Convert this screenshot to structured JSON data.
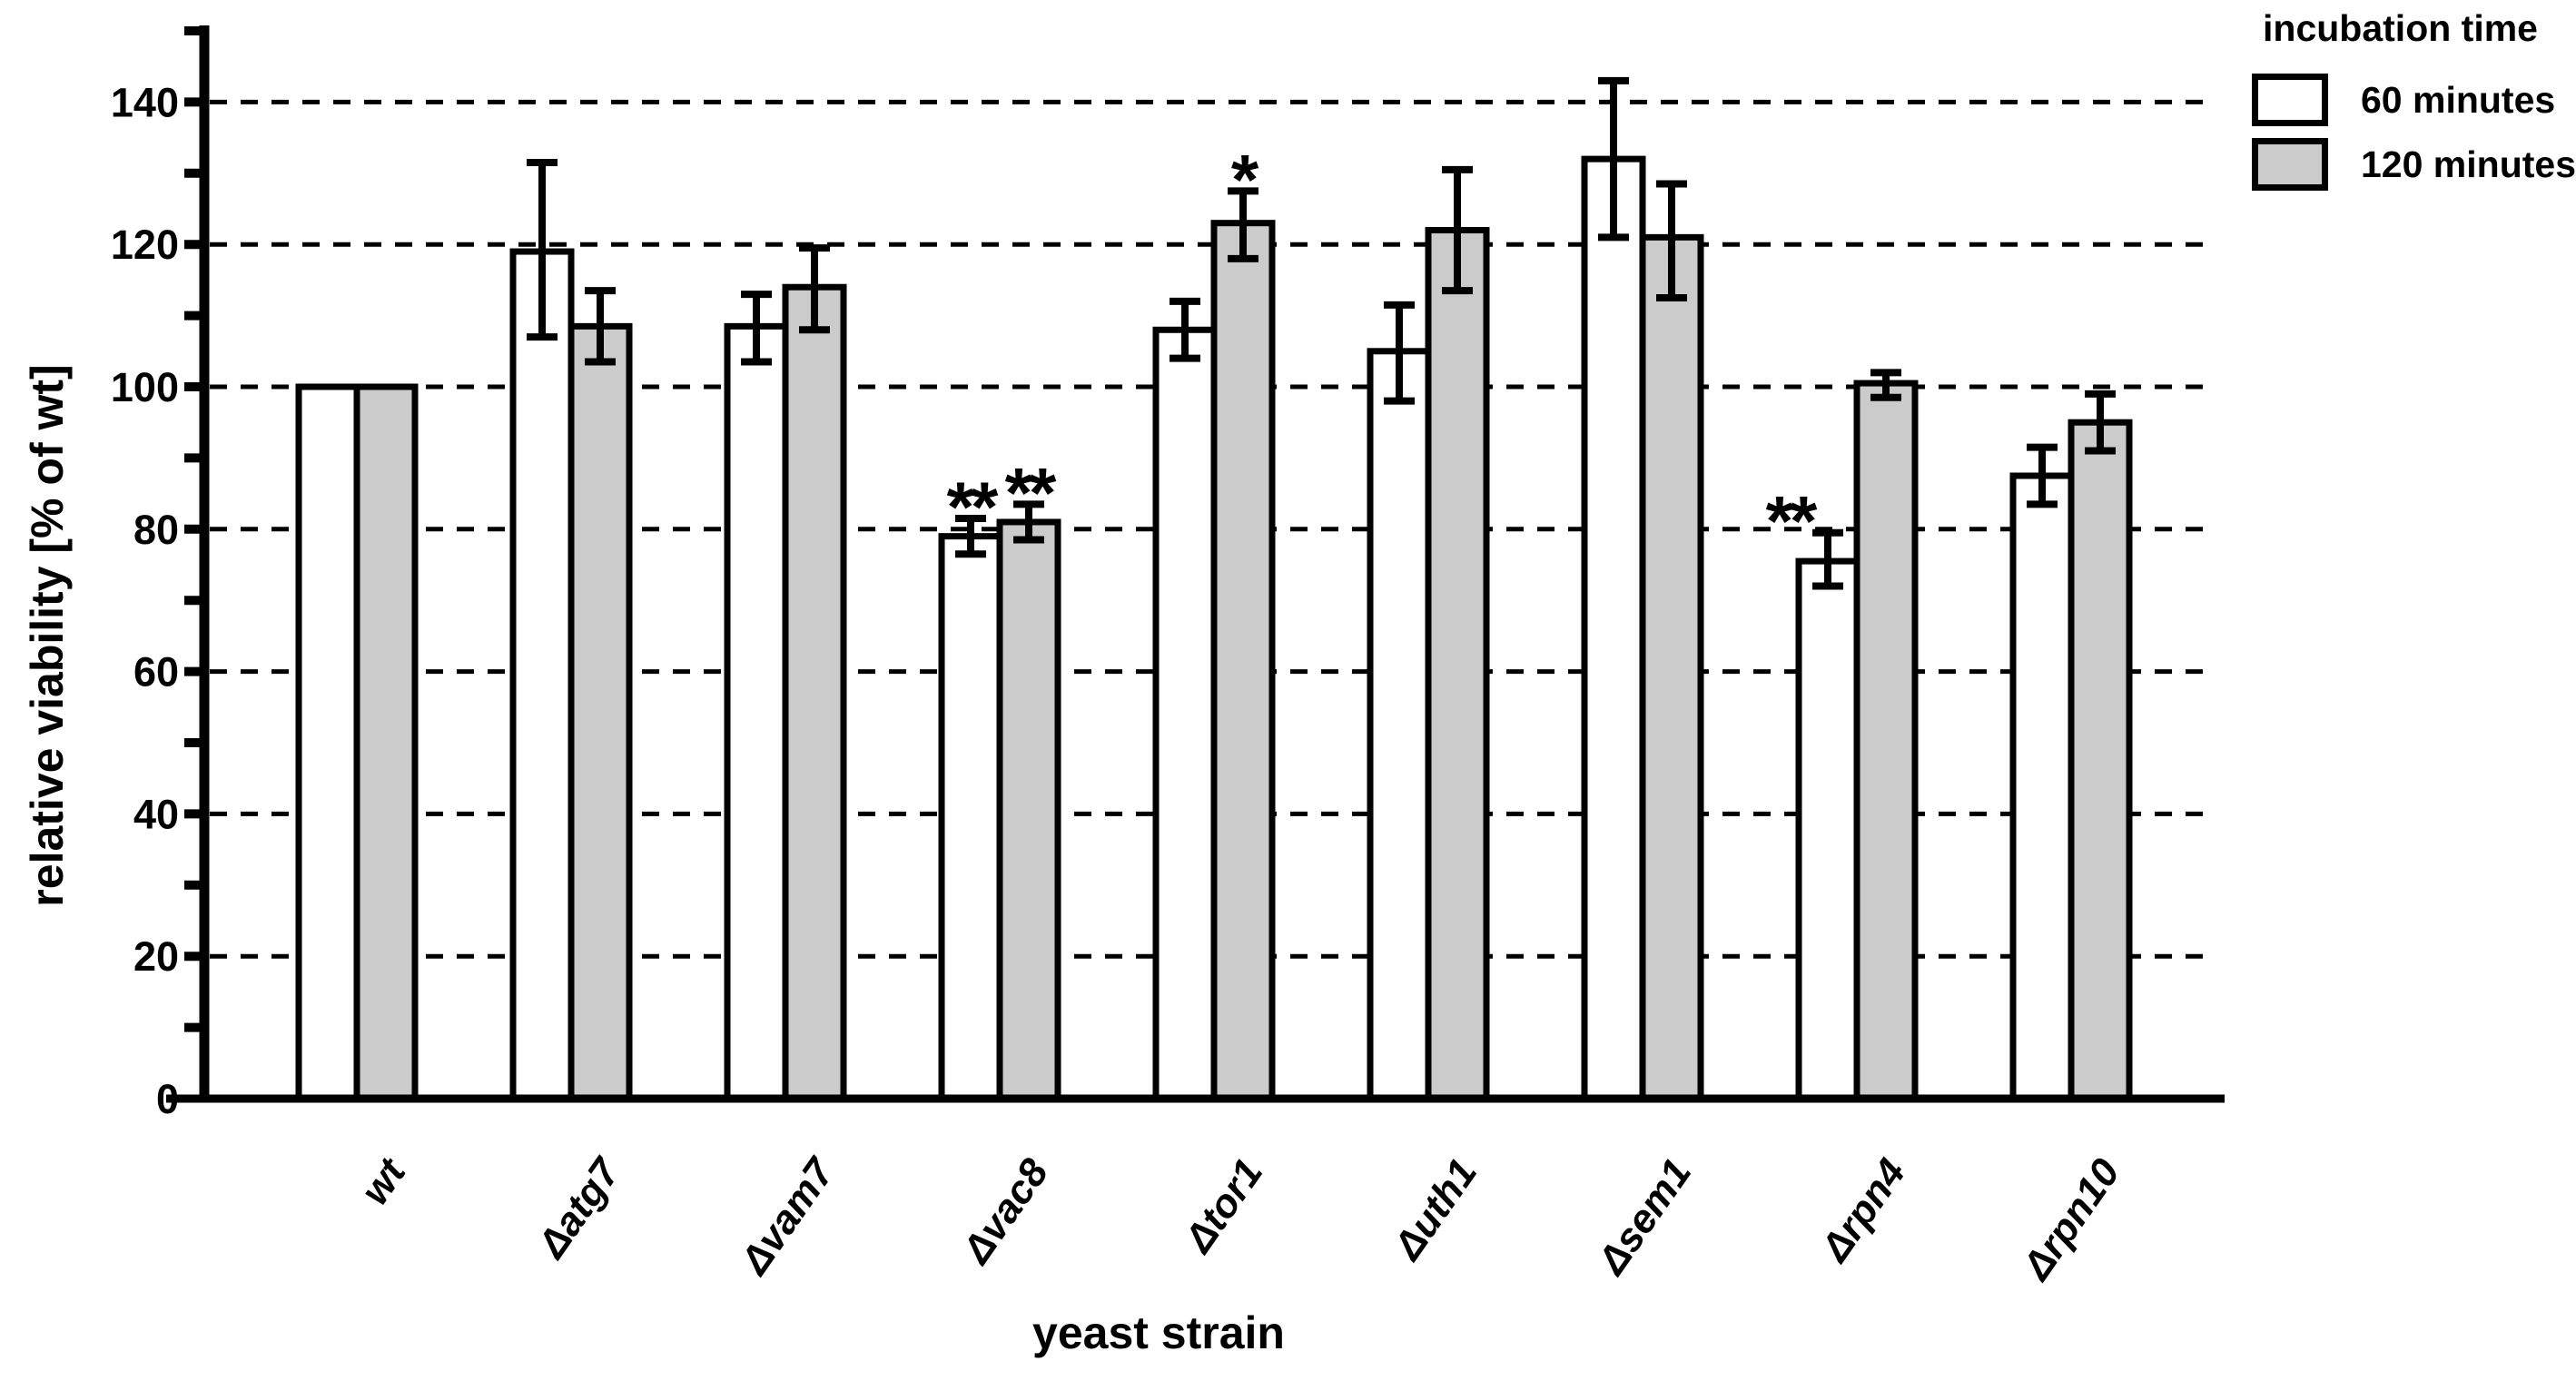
{
  "figure": {
    "background": "#ffffff",
    "line_color": "#000000"
  },
  "chart_data": {
    "type": "bar",
    "title": "",
    "xlabel": "yeast strain",
    "ylabel": "relative viability [% of wt]",
    "ylim": [
      0,
      150
    ],
    "yticks": [
      0,
      20,
      40,
      60,
      80,
      100,
      120,
      140
    ],
    "yticks_minor": [
      10,
      30,
      50,
      70,
      90,
      110,
      130,
      150
    ],
    "grid": {
      "axis": "y",
      "style": "dashed",
      "at": [
        20,
        40,
        60,
        80,
        100,
        120,
        140
      ]
    },
    "categories": [
      "wt",
      "Δatg7",
      "Δvam7",
      "Δvac8",
      "Δtor1",
      "Δuth1",
      "Δsem1",
      "Δrpn4",
      "Δrpn10"
    ],
    "series": [
      {
        "name": "60 minutes",
        "fill": "#ffffff",
        "values": [
          100,
          119,
          108.5,
          79,
          108,
          105,
          132,
          75.5,
          87.5
        ],
        "err_lo": [
          null,
          107,
          103.5,
          76.5,
          104,
          98,
          121,
          72,
          83.5
        ],
        "err_hi": [
          null,
          131.5,
          113,
          81.5,
          112,
          111.5,
          143,
          79.5,
          91.5
        ],
        "sig": [
          "",
          "",
          "",
          "**",
          "",
          "",
          "",
          "**",
          ""
        ]
      },
      {
        "name": "120 minutes",
        "fill": "#cbcbcb",
        "values": [
          100,
          108.5,
          114,
          81,
          123,
          122,
          121,
          100.5,
          95
        ],
        "err_lo": [
          null,
          103.5,
          108,
          78.5,
          118,
          113.5,
          112.5,
          98.5,
          91
        ],
        "err_hi": [
          null,
          113.5,
          119.5,
          83.5,
          127.5,
          130.5,
          128.5,
          102,
          99
        ],
        "sig": [
          "",
          "",
          "",
          "**",
          "*",
          "",
          "",
          "",
          ""
        ]
      }
    ],
    "legend": {
      "title": "incubation time",
      "position": "top-right"
    }
  }
}
